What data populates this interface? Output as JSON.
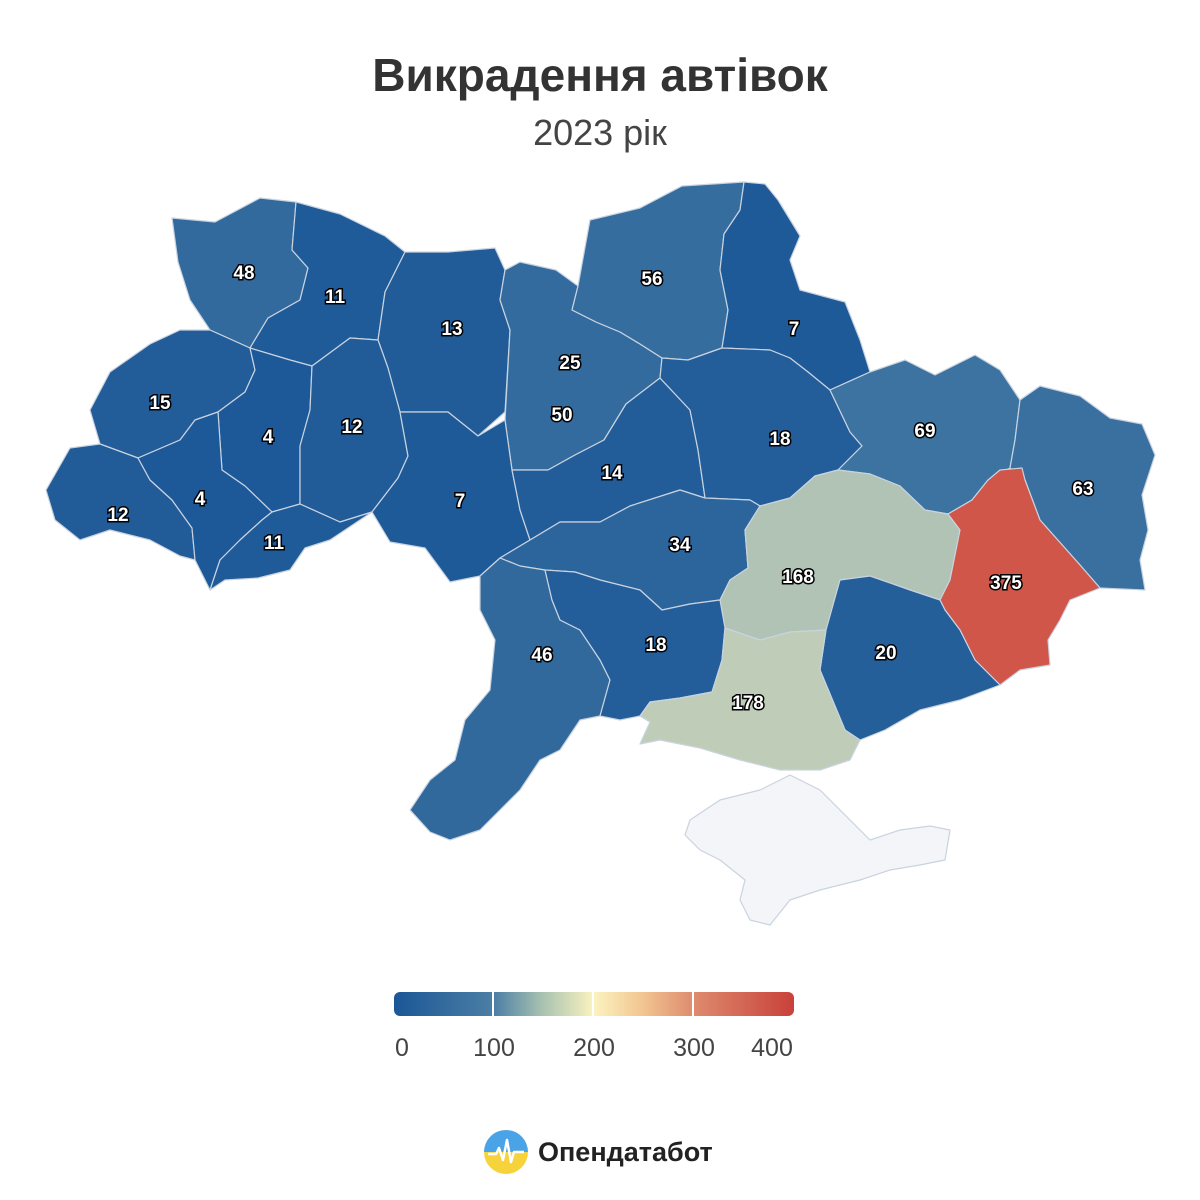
{
  "header": {
    "title": "Викрадення автівок",
    "subtitle": "2023 рік"
  },
  "colors": {
    "low": "#1b5797",
    "mid": "#fbf3c0",
    "high": "#c8413a",
    "crimea": "#f4f5f8"
  },
  "regions": [
    {
      "name": "volyn",
      "value": "48",
      "num": 48
    },
    {
      "name": "rivne",
      "value": "11",
      "num": 11
    },
    {
      "name": "zhytomyr",
      "value": "13",
      "num": 13
    },
    {
      "name": "kyiv-city",
      "value": "25",
      "num": 25
    },
    {
      "name": "kyiv-oblast",
      "value": "50",
      "num": 50
    },
    {
      "name": "chernihiv",
      "value": "56",
      "num": 56
    },
    {
      "name": "sumy",
      "value": "7",
      "num": 7
    },
    {
      "name": "lviv",
      "value": "15",
      "num": 15
    },
    {
      "name": "ternopil",
      "value": "4",
      "num": 4
    },
    {
      "name": "khmelnytskyi",
      "value": "12",
      "num": 12
    },
    {
      "name": "vinnytsia",
      "value": "7",
      "num": 7
    },
    {
      "name": "cherkasy",
      "value": "14",
      "num": 14
    },
    {
      "name": "poltava",
      "value": "18",
      "num": 18
    },
    {
      "name": "kharkiv",
      "value": "69",
      "num": 69
    },
    {
      "name": "luhansk",
      "value": "63",
      "num": 63
    },
    {
      "name": "zakarpattia",
      "value": "12",
      "num": 12
    },
    {
      "name": "ivano-frankivsk",
      "value": "4",
      "num": 4
    },
    {
      "name": "chernivtsi",
      "value": "11",
      "num": 11
    },
    {
      "name": "kirovohrad",
      "value": "34",
      "num": 34
    },
    {
      "name": "dnipropetrovsk",
      "value": "168",
      "num": 168
    },
    {
      "name": "donetsk",
      "value": "375",
      "num": 375
    },
    {
      "name": "odesa",
      "value": "46",
      "num": 46
    },
    {
      "name": "mykolaiv",
      "value": "18",
      "num": 18
    },
    {
      "name": "zaporizhzhia",
      "value": "20",
      "num": 20
    },
    {
      "name": "kherson",
      "value": "178",
      "num": 178
    }
  ],
  "legend": {
    "ticks": [
      "0",
      "100",
      "200",
      "300",
      "400"
    ],
    "min": 0,
    "max": 400
  },
  "brand": {
    "name": "Опендатабот",
    "logo_icon": "opendatabot-logo-icon"
  }
}
